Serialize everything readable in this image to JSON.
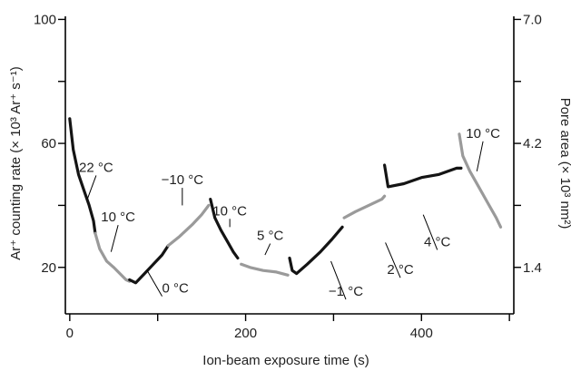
{
  "chart_data": {
    "type": "line",
    "xlabel": "Ion-beam exposure time (s)",
    "ylabel": "Ar⁺ counting rate (× 10³ Ar⁺ s⁻¹)",
    "y2label": "Pore area (× 10³ nm²)",
    "xlim": [
      -5,
      505
    ],
    "ylim": [
      5,
      101
    ],
    "y2lim": [
      0.35,
      7.07
    ],
    "x_ticks": [
      0,
      200,
      400
    ],
    "x_minor_ticks": [
      100,
      300,
      500
    ],
    "y_ticks": [
      100,
      60,
      20
    ],
    "y_minor_ticks": [
      80,
      40
    ],
    "y2_ticks": [
      "7.0",
      "4.2",
      "1.4"
    ],
    "y2_minor_ticks": [
      5.6,
      2.8
    ],
    "colors": {
      "black": "#141414",
      "gray": "#9a9a9a"
    },
    "series": [
      {
        "color": "black",
        "points": [
          [
            0,
            68
          ],
          [
            4,
            58
          ],
          [
            10,
            50
          ],
          [
            16,
            45
          ],
          [
            22,
            40
          ],
          [
            27,
            35
          ],
          [
            29,
            31
          ]
        ]
      },
      {
        "color": "gray",
        "points": [
          [
            29,
            31
          ],
          [
            34,
            26
          ],
          [
            42,
            22
          ],
          [
            50,
            20
          ],
          [
            57,
            18
          ],
          [
            64,
            16
          ],
          [
            68,
            15.5
          ]
        ]
      },
      {
        "color": "black",
        "points": [
          [
            68,
            16
          ],
          [
            75,
            15
          ],
          [
            85,
            18
          ],
          [
            95,
            21
          ],
          [
            105,
            24
          ],
          [
            112,
            27
          ]
        ]
      },
      {
        "color": "gray",
        "points": [
          [
            112,
            27
          ],
          [
            125,
            30
          ],
          [
            140,
            34
          ],
          [
            150,
            37
          ],
          [
            158,
            40
          ]
        ]
      },
      {
        "color": "black",
        "points": [
          [
            160,
            42
          ],
          [
            165,
            36
          ],
          [
            172,
            32
          ],
          [
            180,
            28
          ],
          [
            186,
            25
          ],
          [
            191,
            23
          ]
        ]
      },
      {
        "color": "gray",
        "points": [
          [
            195,
            21
          ],
          [
            205,
            20
          ],
          [
            220,
            19
          ],
          [
            235,
            18.5
          ],
          [
            248,
            17.5
          ]
        ]
      },
      {
        "color": "black",
        "points": [
          [
            250,
            23
          ],
          [
            253,
            19
          ],
          [
            258,
            18
          ],
          [
            270,
            21
          ],
          [
            285,
            25
          ],
          [
            298,
            29
          ],
          [
            310,
            33
          ]
        ]
      },
      {
        "color": "gray",
        "points": [
          [
            312,
            36
          ],
          [
            325,
            38
          ],
          [
            340,
            40
          ],
          [
            355,
            42
          ],
          [
            358,
            43
          ]
        ]
      },
      {
        "color": "black",
        "points": [
          [
            358,
            53
          ],
          [
            362,
            46
          ],
          [
            380,
            47
          ],
          [
            400,
            49
          ],
          [
            420,
            50
          ],
          [
            440,
            52
          ],
          [
            445,
            52
          ]
        ]
      },
      {
        "color": "gray",
        "points": [
          [
            443,
            63
          ],
          [
            447,
            56
          ],
          [
            455,
            51
          ],
          [
            465,
            46
          ],
          [
            475,
            41
          ],
          [
            485,
            36
          ],
          [
            490,
            33
          ]
        ]
      }
    ],
    "annotations": [
      {
        "text": "22 °C",
        "x": 30,
        "y": 52,
        "tx": 20,
        "ty": 42,
        "anchor": "middle"
      },
      {
        "text": "10 °C",
        "x": 55,
        "y": 36,
        "tx": 47,
        "ty": 25,
        "anchor": "middle"
      },
      {
        "text": "−10 °C",
        "x": 128,
        "y": 48,
        "tx": 128,
        "ty": 40,
        "anchor": "middle"
      },
      {
        "text": "10 °C",
        "x": 182,
        "y": 38,
        "tx": 182,
        "ty": 33,
        "anchor": "middle"
      },
      {
        "text": "5 °C",
        "x": 228,
        "y": 30,
        "tx": 222,
        "ty": 24,
        "anchor": "middle"
      },
      {
        "text": "0 °C",
        "x": 105,
        "y": 13,
        "tx": 88,
        "ty": 19,
        "anchor": "start"
      },
      {
        "text": "−1 °C",
        "x": 314,
        "y": 12,
        "tx": 297,
        "ty": 22,
        "anchor": "middle"
      },
      {
        "text": "2 °C",
        "x": 376,
        "y": 19,
        "tx": 359,
        "ty": 28,
        "anchor": "middle"
      },
      {
        "text": "4 °C",
        "x": 418,
        "y": 28,
        "tx": 402,
        "ty": 37,
        "anchor": "middle"
      },
      {
        "text": "10 °C",
        "x": 470,
        "y": 63,
        "tx": 463,
        "ty": 51,
        "anchor": "middle"
      }
    ]
  }
}
